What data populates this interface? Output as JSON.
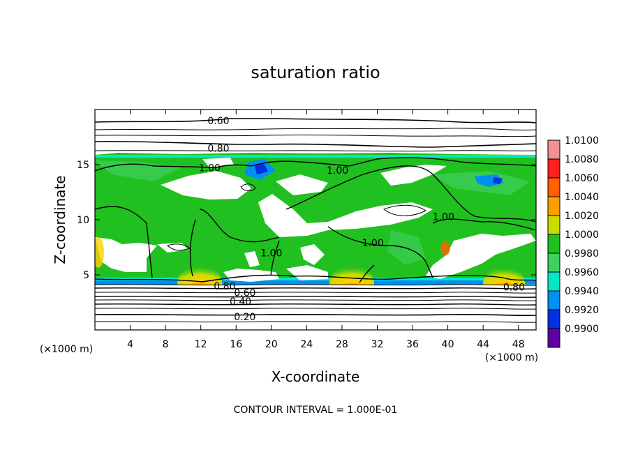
{
  "chart_data": {
    "type": "heatmap",
    "title": "saturation ratio",
    "xlabel": "X-coordinate",
    "ylabel": "Z-coordinate",
    "x_unit_label": "(×1000 m)",
    "y_unit_label": "(×1000 m)",
    "footer": "CONTOUR INTERVAL = 1.000E-01",
    "xlim": [
      0,
      50
    ],
    "ylim": [
      0,
      20
    ],
    "x_ticks": [
      4,
      8,
      12,
      16,
      20,
      24,
      28,
      32,
      36,
      40,
      44,
      48
    ],
    "y_ticks": [
      5,
      10,
      15
    ],
    "colorbar": {
      "levels": [
        "1.0100",
        "1.0080",
        "1.0060",
        "1.0040",
        "1.0020",
        "1.0000",
        "0.9980",
        "0.9960",
        "0.9940",
        "0.9920",
        "0.9900"
      ],
      "colors": [
        "#f09090",
        "#ff2020",
        "#ff6000",
        "#ffa000",
        "#c8dc00",
        "#20c020",
        "#40d060",
        "#00e8c8",
        "#0090f0",
        "#0030e0",
        "#6000a0"
      ]
    },
    "contours": [
      {
        "label": "0.60",
        "z": 19.0,
        "label_x": 14.0
      },
      {
        "label": "0.80",
        "z": 16.5,
        "label_x": 14.0
      },
      {
        "label": "1.00",
        "z": 14.7,
        "label_x": 13.0
      },
      {
        "label": "1.00",
        "z": 14.5,
        "label_x": 27.5
      },
      {
        "label": "1.00",
        "z": 10.3,
        "label_x": 39.5
      },
      {
        "label": "1.00",
        "z": 7.9,
        "label_x": 31.5
      },
      {
        "label": "1.00",
        "z": 7.0,
        "label_x": 20.0
      },
      {
        "label": "0.80",
        "z": 3.9,
        "label_x": 47.5
      },
      {
        "label": "0.80",
        "z": 4.0,
        "label_x": 14.7
      },
      {
        "label": "0.60",
        "z": 3.4,
        "label_x": 17.0
      },
      {
        "label": "0.40",
        "z": 2.6,
        "label_x": 16.5
      },
      {
        "label": "0.20",
        "z": 1.2,
        "label_x": 17.0
      }
    ]
  }
}
